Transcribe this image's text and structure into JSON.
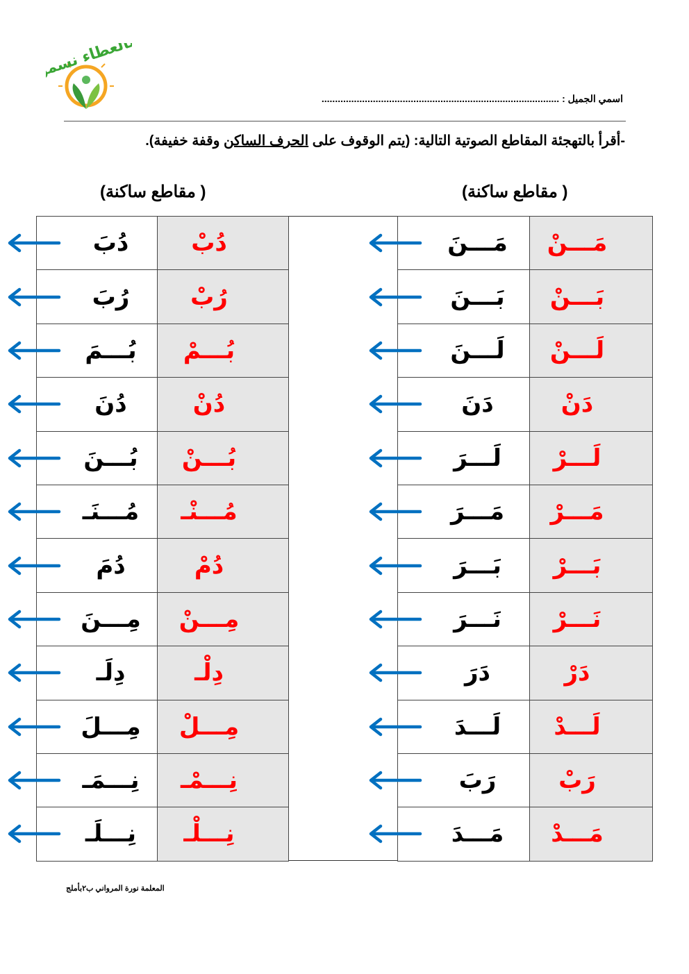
{
  "logo": {
    "text": "بالعطاء نسمو",
    "colors": {
      "text": "#3aa635",
      "sun": "#f5a623",
      "leaf": "#5cb85c"
    }
  },
  "header": {
    "name_label": "اسمي الجميل :",
    "name_placeholder": "........................................................................................"
  },
  "instruction": {
    "before": "-أقرأ بالتهجئة المقاطع الصوتية التالية: (يتم الوقوف على ",
    "underlined": "الحرف الساكن",
    "after": " وقفة خفيفة)."
  },
  "right_table": {
    "heading": "( مقاطع ساكنة)",
    "rows": [
      {
        "source": "مَـــنَ",
        "result": "مَـــنْ"
      },
      {
        "source": "بَـــنَ",
        "result": "بَـــنْ"
      },
      {
        "source": "لَـــنَ",
        "result": "لَـــنْ"
      },
      {
        "source": "دَنَ",
        "result": "دَنْ"
      },
      {
        "source": "لَـــرَ",
        "result": "لَـــرْ"
      },
      {
        "source": "مَـــرَ",
        "result": "مَـــرْ"
      },
      {
        "source": "بَـــرَ",
        "result": "بَـــرْ"
      },
      {
        "source": "نَـــرَ",
        "result": "نَـــرْ"
      },
      {
        "source": "دَرَ",
        "result": "دَرْ"
      },
      {
        "source": "لَـــدَ",
        "result": "لَـــدْ"
      },
      {
        "source": "رَبَ",
        "result": "رَبْ"
      },
      {
        "source": "مَـــدَ",
        "result": "مَـــدْ"
      }
    ]
  },
  "left_table": {
    "heading": "( مقاطع ساكنة)",
    "rows": [
      {
        "source": "دُبَ",
        "result": "دُبْ"
      },
      {
        "source": "رُبَ",
        "result": "رُبْ"
      },
      {
        "source": "بُـــمَ",
        "result": "بُـــمْ"
      },
      {
        "source": "دُنَ",
        "result": "دُنْ"
      },
      {
        "source": "بُـــنَ",
        "result": "بُـــنْ"
      },
      {
        "source": "مُـــنَـ",
        "result": "مُـــنْـ"
      },
      {
        "source": "دُمَ",
        "result": "دُمْ"
      },
      {
        "source": "مِـــنَ",
        "result": "مِـــنْ"
      },
      {
        "source": "دِلَـ",
        "result": "دِلْـ"
      },
      {
        "source": "مِـــلَ",
        "result": "مِـــلْ"
      },
      {
        "source": "نِـــمَـ",
        "result": "نِـــمْـ"
      },
      {
        "source": "نِـــلَـ",
        "result": "نِـــلْـ"
      }
    ]
  },
  "colors": {
    "result_text": "#ff0000",
    "arrow": "#0070c0",
    "result_bg": "#e6e6e6",
    "harakat": "#ff6600"
  },
  "footer": {
    "text": "المعلمة نورة المرواني ب٢بأملج"
  }
}
